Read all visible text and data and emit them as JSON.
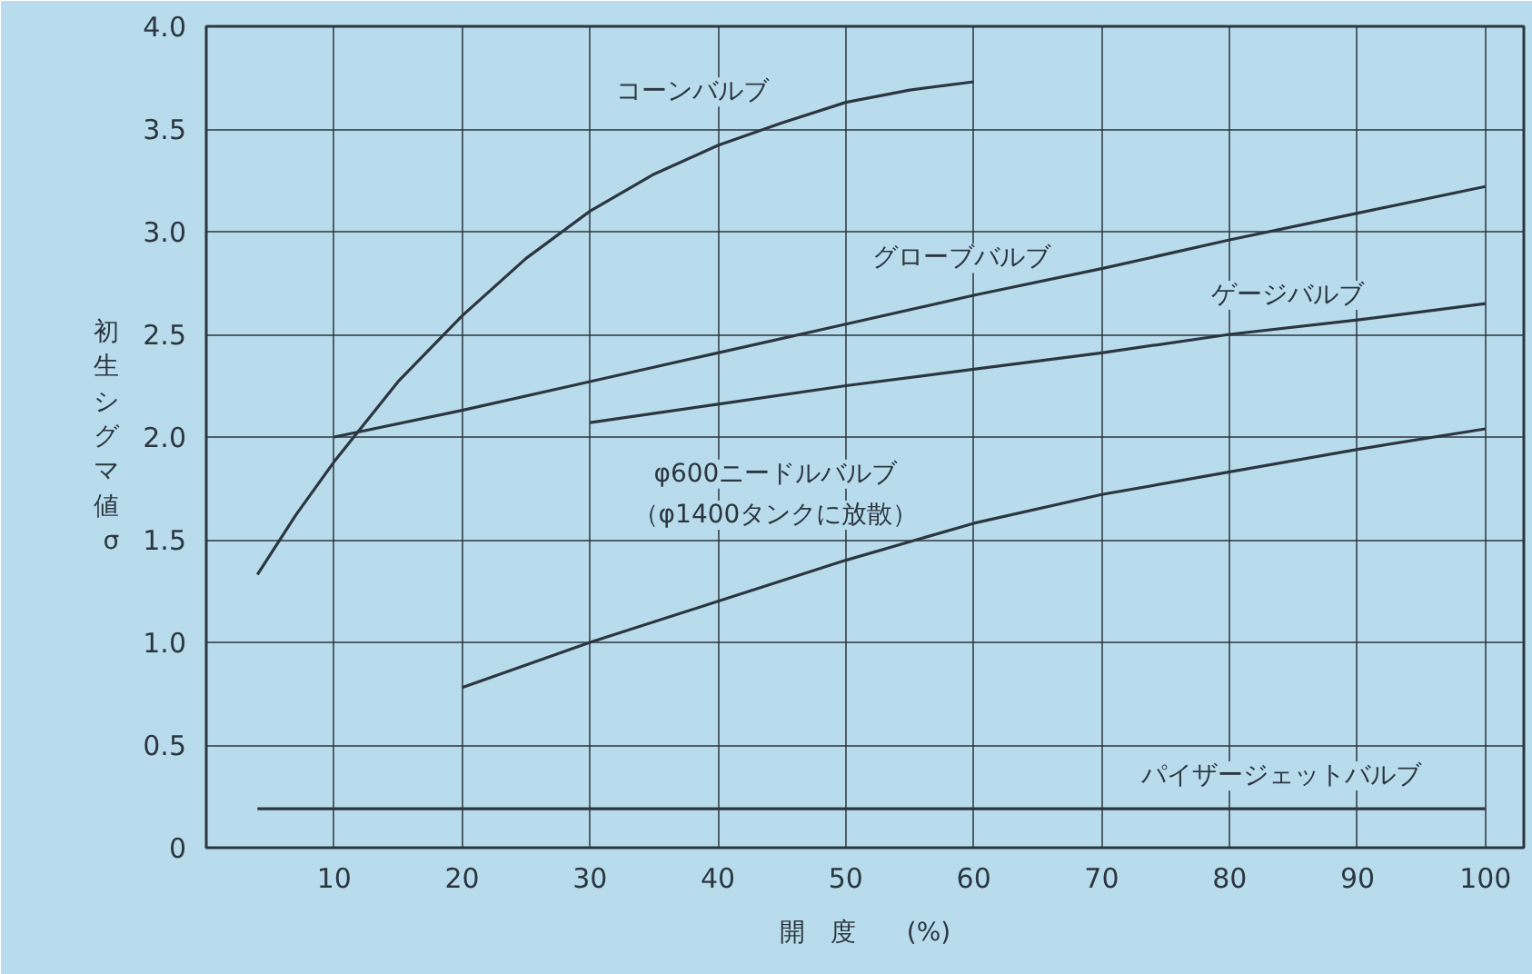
{
  "chart_data": {
    "type": "line",
    "xlabel": "開　度　　(%)",
    "ylabel": "初生シグマ値σ",
    "xlim": [
      0,
      103
    ],
    "ylim": [
      0,
      4.0
    ],
    "xticks": [
      10,
      20,
      30,
      40,
      50,
      60,
      70,
      80,
      90,
      100
    ],
    "yticks": [
      0,
      {
        "value": 0.5,
        "label": "0.5"
      },
      {
        "value": 1,
        "label": "1.0"
      },
      {
        "value": 1.5,
        "label": "1.5"
      },
      {
        "value": 2,
        "label": "2.0"
      },
      {
        "value": 2.5,
        "label": "2.5"
      },
      {
        "value": 3,
        "label": "3.0"
      },
      {
        "value": 3.5,
        "label": "3.5"
      },
      {
        "value": 4,
        "label": "4.0"
      }
    ],
    "grid": true,
    "marker": "none",
    "line_style": "solid",
    "series": [
      {
        "color": "#2b3640",
        "x": [
          4,
          7,
          10,
          15,
          20,
          25,
          30,
          35,
          40,
          45,
          50,
          55,
          60
        ],
        "values": [
          1.33,
          1.62,
          1.88,
          2.27,
          2.59,
          2.87,
          3.1,
          3.28,
          3.42,
          3.53,
          3.63,
          3.69,
          3.73
        ]
      },
      {
        "color": "#2b3640",
        "x": [
          10,
          20,
          30,
          40,
          50,
          60,
          70,
          80,
          90,
          100
        ],
        "values": [
          2.0,
          2.13,
          2.27,
          2.41,
          2.55,
          2.69,
          2.82,
          2.96,
          3.09,
          3.22
        ]
      },
      {
        "color": "#2b3640",
        "x": [
          30,
          40,
          50,
          60,
          70,
          80,
          90,
          100
        ],
        "values": [
          2.07,
          2.16,
          2.25,
          2.33,
          2.41,
          2.5,
          2.57,
          2.65
        ]
      },
      {
        "color": "#2b3640",
        "x": [
          20,
          30,
          40,
          50,
          60,
          70,
          80,
          90,
          100
        ],
        "values": [
          0.78,
          1.0,
          1.2,
          1.4,
          1.58,
          1.72,
          1.83,
          1.94,
          2.04
        ]
      },
      {
        "color": "#2b3640",
        "x": [
          4,
          100
        ],
        "values": [
          0.19,
          0.19
        ]
      }
    ],
    "annotations": [
      "コーンバルブ",
      "グローブバルブ",
      "ゲージバルブ",
      "φ600ニードルバルブ",
      "（φ1400タンクに放散）",
      "パイザージェットバルブ"
    ]
  }
}
